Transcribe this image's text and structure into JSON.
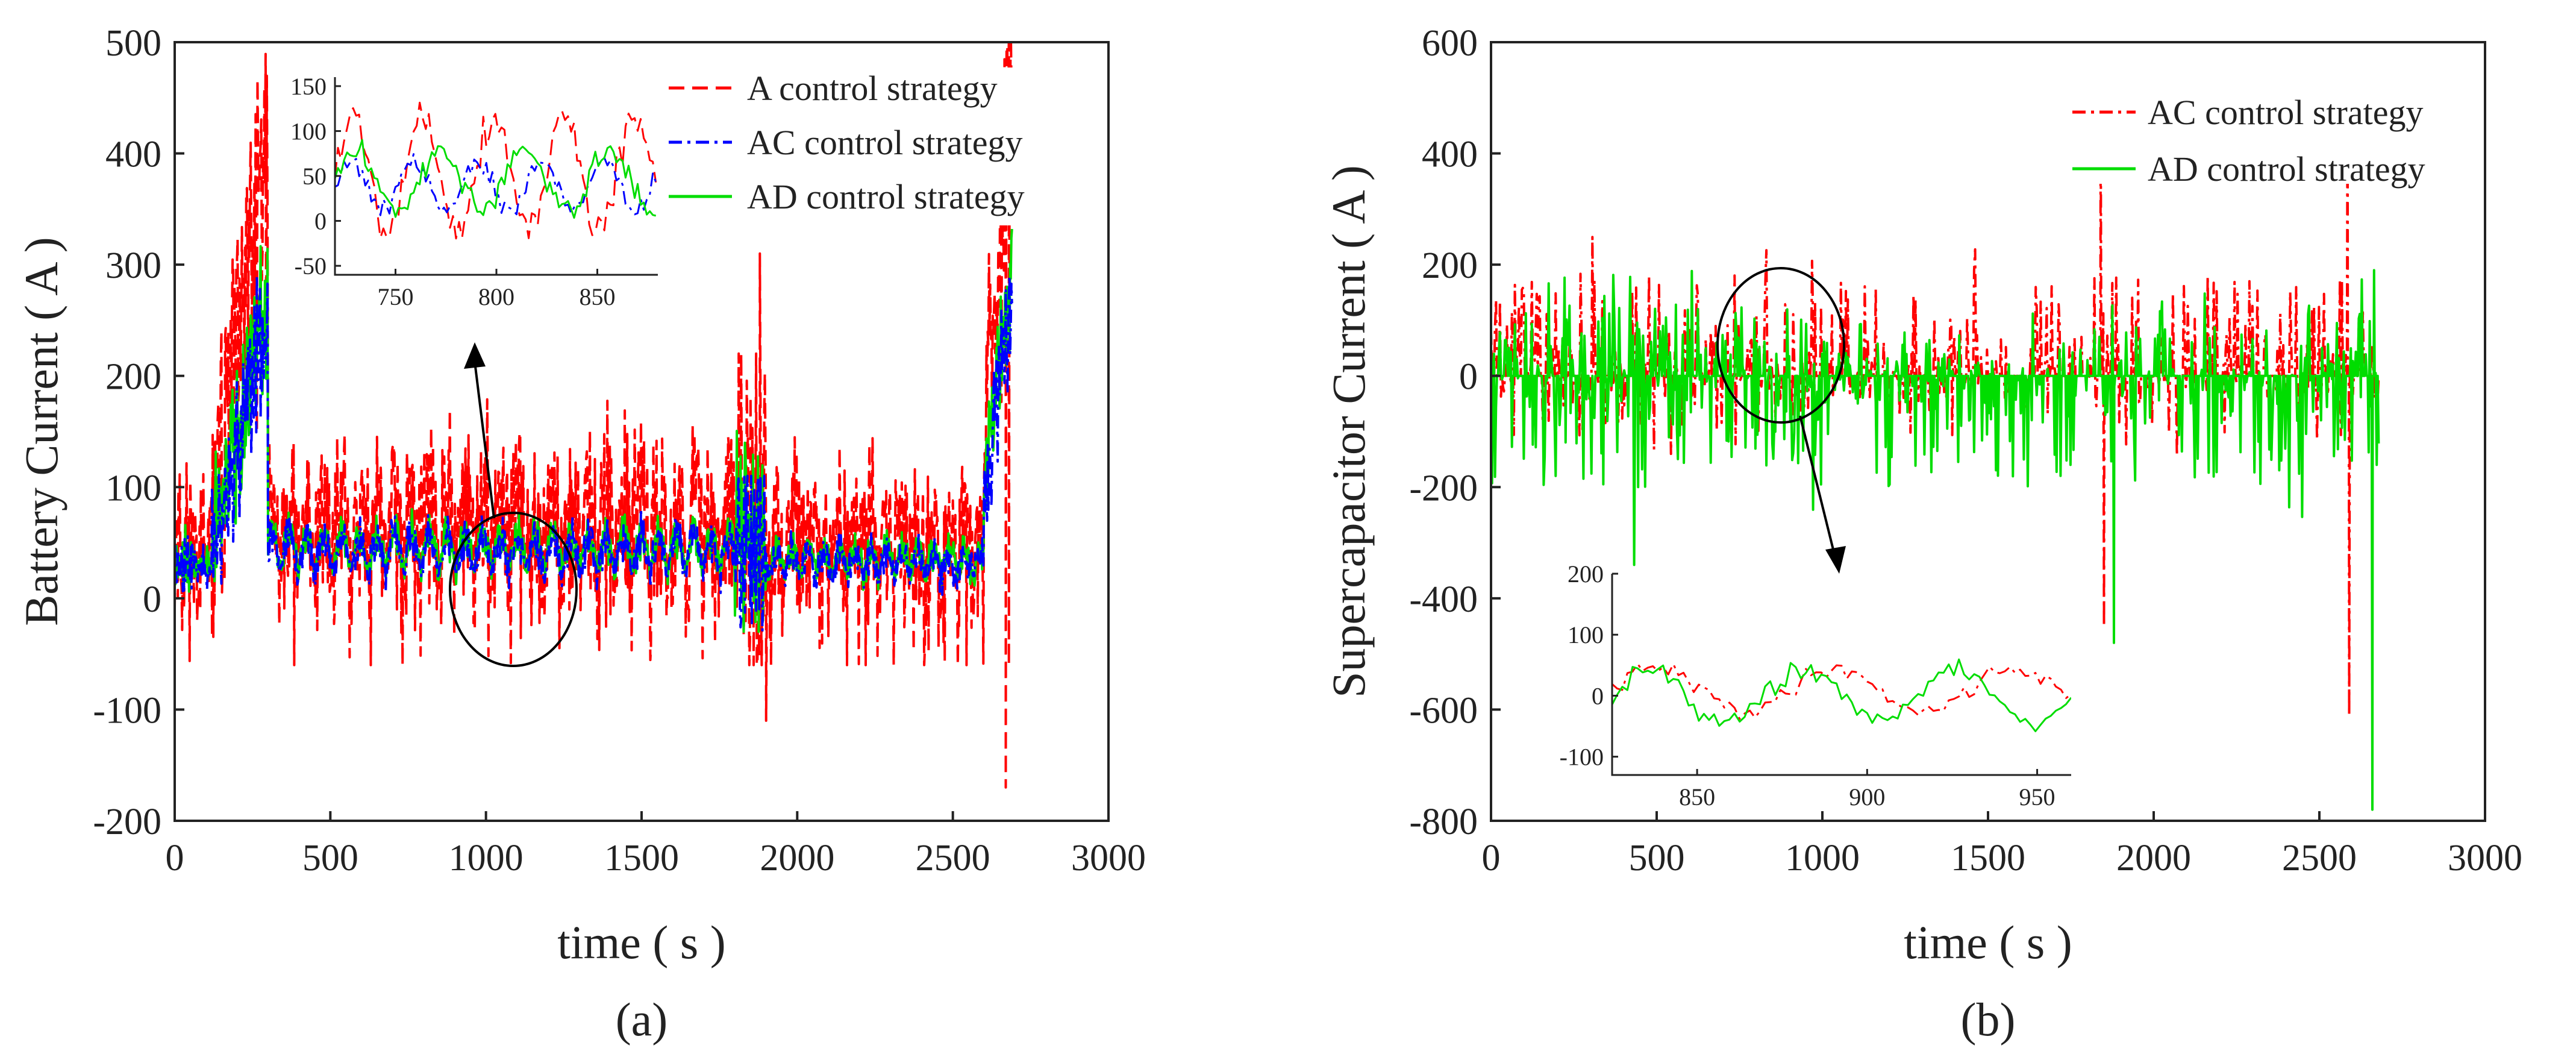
{
  "chart_data": [
    {
      "panel_label": "(a)",
      "type": "line",
      "xlabel": "time ( s )",
      "ylabel": "Battery Current ( A )",
      "xlim": [
        0,
        3000
      ],
      "ylim": [
        -200,
        500
      ],
      "xticks": [
        0,
        500,
        1000,
        1500,
        2000,
        2500,
        3000
      ],
      "yticks": [
        -200,
        -100,
        0,
        100,
        200,
        300,
        400,
        500
      ],
      "legend_position": "top-right",
      "series": [
        {
          "name": "A control strategy",
          "color": "#ff0000",
          "style": "dashed"
        },
        {
          "name": "AC control strategy",
          "color": "#0000ff",
          "style": "dashdot"
        },
        {
          "name": "AD control strategy",
          "color": "#00dd00",
          "style": "solid"
        }
      ],
      "annotation": "zoom ellipse around t≈930 s with arrow to inset",
      "inset": {
        "xlim": [
          720,
          880
        ],
        "ylim": [
          -60,
          160
        ],
        "xticks": [
          750,
          800,
          850
        ],
        "yticks": [
          -50,
          0,
          50,
          100,
          150
        ],
        "series_order": [
          "A control strategy",
          "AC control strategy",
          "AD control strategy"
        ]
      }
    },
    {
      "panel_label": "(b)",
      "type": "line",
      "xlabel": "time ( s )",
      "ylabel": "Supercapacitor Current ( A )",
      "xlim": [
        0,
        3000
      ],
      "ylim": [
        -800,
        600
      ],
      "xticks": [
        0,
        500,
        1000,
        1500,
        2000,
        2500,
        3000
      ],
      "yticks": [
        -800,
        -600,
        -400,
        -200,
        0,
        200,
        400,
        600
      ],
      "legend_position": "top-right",
      "series": [
        {
          "name": "AC control strategy",
          "color": "#ff0000",
          "style": "dashdot"
        },
        {
          "name": "AD control strategy",
          "color": "#00dd00",
          "style": "solid"
        }
      ],
      "annotation": "zoom ellipse around t≈870 s with arrow to inset",
      "inset": {
        "xlim": [
          825,
          960
        ],
        "ylim": [
          -130,
          200
        ],
        "xticks": [
          850,
          900,
          950
        ],
        "yticks": [
          -100,
          0,
          100,
          200
        ],
        "series_order": [
          "AC control strategy",
          "AD control strategy"
        ]
      }
    }
  ]
}
